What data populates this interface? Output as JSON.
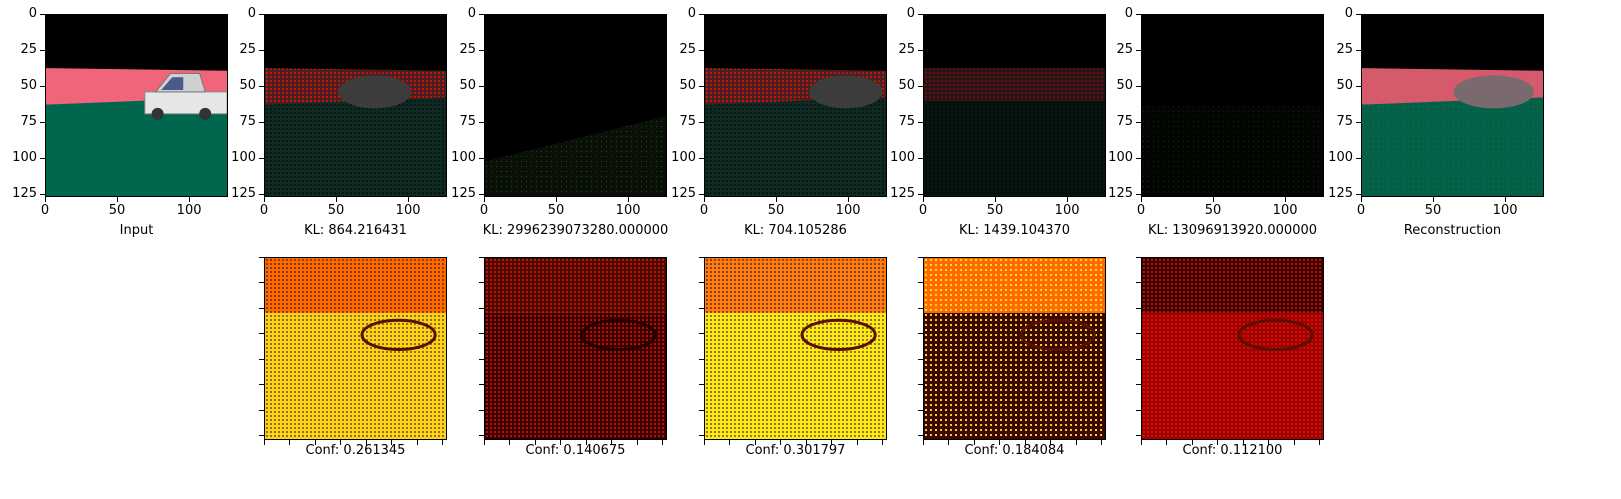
{
  "axis": {
    "yticks": [
      "0",
      "25",
      "50",
      "75",
      "100",
      "125"
    ],
    "xticks": [
      "0",
      "50",
      "100"
    ]
  },
  "top_row": [
    {
      "name": "input",
      "caption": "Input"
    },
    {
      "name": "latent-1",
      "caption": "KL: 864.216431"
    },
    {
      "name": "latent-2",
      "caption": "KL: 2996239073280.000000"
    },
    {
      "name": "latent-3",
      "caption": "KL: 704.105286"
    },
    {
      "name": "latent-4",
      "caption": "KL: 1439.104370"
    },
    {
      "name": "latent-5",
      "caption": "KL: 13096913920.000000"
    },
    {
      "name": "reconstruction",
      "caption": "Reconstruction"
    }
  ],
  "bottom_row": [
    {
      "name": "confidence-1",
      "caption": "Conf: 0.261345"
    },
    {
      "name": "confidence-2",
      "caption": "Conf: 0.140675"
    },
    {
      "name": "confidence-3",
      "caption": "Conf: 0.301797"
    },
    {
      "name": "confidence-4",
      "caption": "Conf: 0.184084"
    },
    {
      "name": "confidence-5",
      "caption": "Conf: 0.112100"
    }
  ],
  "colors": {
    "sky": "#000000",
    "road_pink": "#f0657a",
    "ground_green": "#00664d",
    "heat_dark": "#3b0000",
    "heat_orange": "#ff6a00",
    "heat_yellow": "#ffe81a"
  }
}
